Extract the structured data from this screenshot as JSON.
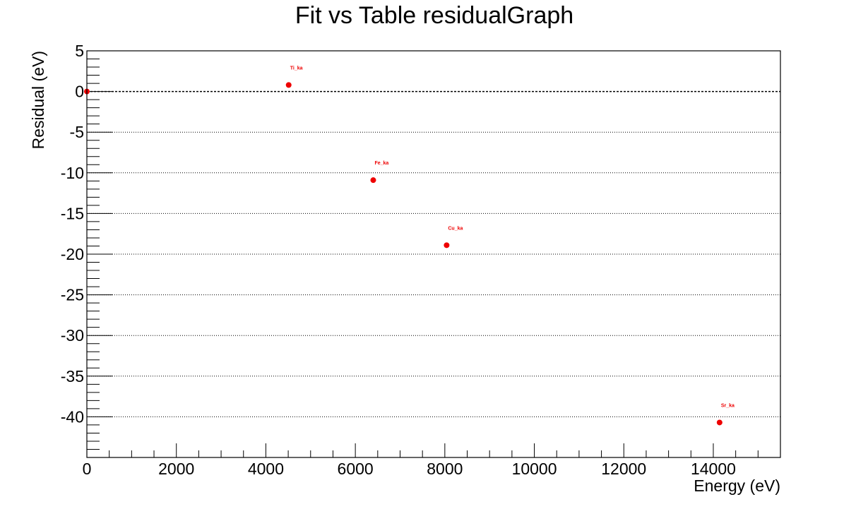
{
  "chart_data": {
    "type": "scatter",
    "title": "Fit vs Table residualGraph",
    "xlabel": "Energy (eV)",
    "ylabel": "Residual (eV)",
    "xlim": [
      0,
      15500
    ],
    "ylim": [
      -45,
      5
    ],
    "xticks": [
      0,
      2000,
      4000,
      6000,
      8000,
      10000,
      12000,
      14000
    ],
    "yticks": [
      5,
      0,
      -5,
      -10,
      -15,
      -20,
      -25,
      -30,
      -35,
      -40
    ],
    "grid": "horizontal-dotted",
    "reference_line_y": 0,
    "marker_color": "#ee0000",
    "points": [
      {
        "label": "",
        "x": 0,
        "y": 0
      },
      {
        "label": "Ti_ka",
        "x": 4510,
        "y": 0.8
      },
      {
        "label": "Fe_ka",
        "x": 6400,
        "y": -10.9
      },
      {
        "label": "Cu_ka",
        "x": 8040,
        "y": -18.9
      },
      {
        "label": "Sr_ka",
        "x": 14140,
        "y": -40.7
      }
    ]
  }
}
